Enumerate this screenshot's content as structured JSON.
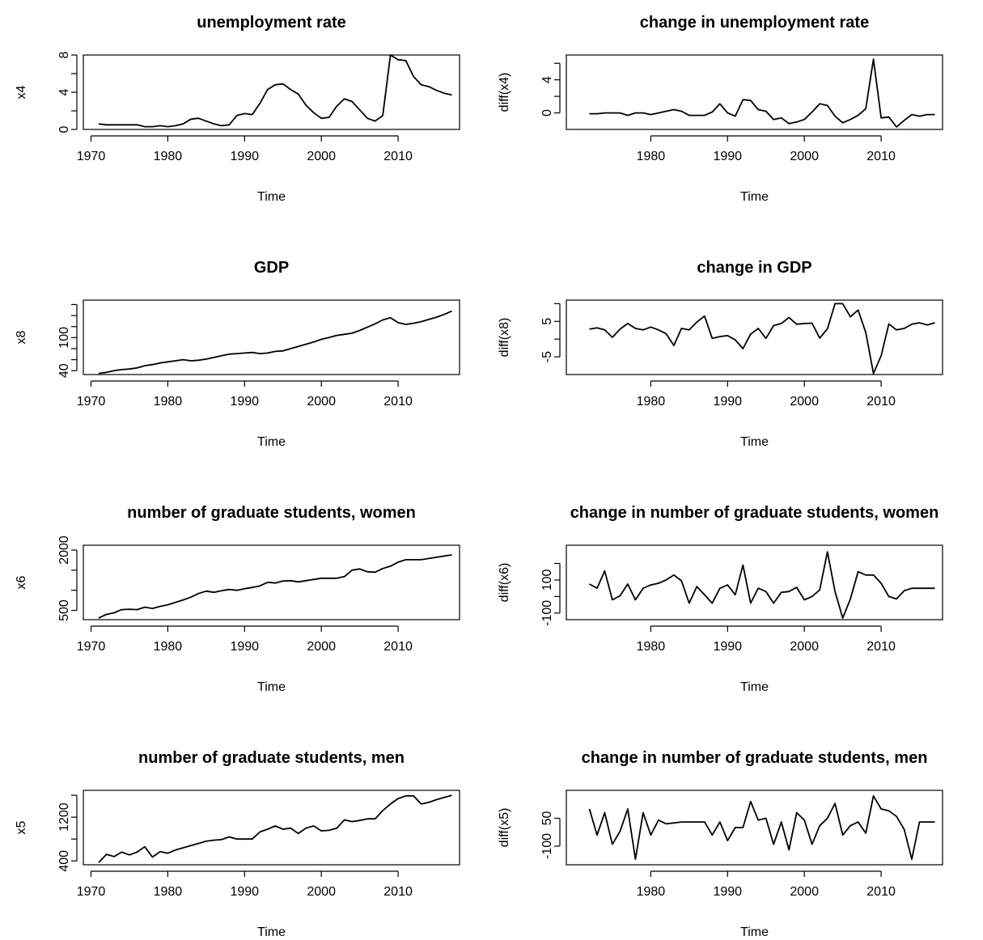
{
  "chart_data": [
    {
      "type": "line",
      "title": "unemployment rate",
      "xlabel": "Time",
      "ylabel": "x4",
      "x_start": 1971,
      "xlim": [
        1969,
        2018
      ],
      "ylim": [
        0,
        8
      ],
      "xticks": [
        1970,
        1980,
        1990,
        2000,
        2010
      ],
      "yticks": [
        0,
        2,
        4,
        6,
        8
      ],
      "ytick_labels": [
        "0",
        "",
        "4",
        "",
        "8"
      ],
      "values": [
        0.6,
        0.5,
        0.5,
        0.5,
        0.5,
        0.5,
        0.3,
        0.3,
        0.4,
        0.3,
        0.4,
        0.6,
        1.1,
        1.2,
        0.9,
        0.6,
        0.4,
        0.5,
        1.5,
        1.7,
        1.6,
        2.8,
        4.3,
        4.8,
        4.9,
        4.3,
        3.8,
        2.6,
        1.8,
        1.2,
        1.3,
        2.5,
        3.3,
        3.0,
        2.1,
        1.2,
        0.9,
        1.5,
        8.0,
        7.5,
        7.4,
        5.7,
        4.8,
        4.6,
        4.2,
        3.9,
        3.7
      ]
    },
    {
      "type": "line",
      "title": "change in unemployment rate",
      "xlabel": "Time",
      "ylabel": "diff(x4)",
      "x_start": 1972,
      "xlim": [
        1969,
        2018
      ],
      "ylim": [
        -2,
        7
      ],
      "xticks": [
        1980,
        1990,
        2000,
        2010
      ],
      "yticks": [
        0,
        2,
        4,
        6
      ],
      "ytick_labels": [
        "0",
        "",
        "4",
        ""
      ],
      "values": [
        -0.1,
        -0.1,
        0.0,
        0.0,
        0.0,
        -0.3,
        0.0,
        0.0,
        -0.2,
        0.0,
        0.2,
        0.4,
        0.2,
        -0.3,
        -0.3,
        -0.3,
        0.1,
        1.1,
        0.0,
        -0.4,
        1.6,
        1.5,
        0.4,
        0.2,
        -0.8,
        -0.6,
        -1.3,
        -1.1,
        -0.8,
        0.1,
        1.1,
        0.9,
        -0.4,
        -1.2,
        -0.8,
        -0.3,
        0.5,
        6.5,
        -0.6,
        -0.5,
        -1.7,
        -0.9,
        -0.2,
        -0.4,
        -0.2,
        -0.2
      ]
    },
    {
      "type": "line",
      "title": "GDP",
      "xlabel": "Time",
      "ylabel": "x8",
      "x_start": 1971,
      "xlim": [
        1969,
        2018
      ],
      "ylim": [
        33,
        168
      ],
      "xticks": [
        1970,
        1980,
        1990,
        2000,
        2010
      ],
      "yticks": [
        40,
        60,
        80,
        100,
        120,
        140,
        160
      ],
      "ytick_labels": [
        "40",
        "",
        "",
        "100",
        "",
        "",
        ""
      ],
      "values": [
        35,
        37,
        40,
        42,
        43,
        45,
        49,
        51,
        54,
        56,
        58,
        60,
        58,
        59,
        61,
        64,
        67,
        70,
        71,
        72,
        73,
        71,
        72,
        75,
        76,
        80,
        84,
        88,
        92,
        97,
        100,
        104,
        106,
        108,
        113,
        119,
        125,
        132,
        136,
        127,
        124,
        126,
        129,
        133,
        137,
        142,
        148
      ]
    },
    {
      "type": "line",
      "title": "change in GDP",
      "xlabel": "Time",
      "ylabel": "diff(x8)",
      "x_start": 1972,
      "xlim": [
        1969,
        2018
      ],
      "ylim": [
        -10,
        11
      ],
      "xticks": [
        1980,
        1990,
        2000,
        2010
      ],
      "yticks": [
        -5,
        0,
        5,
        10
      ],
      "ytick_labels": [
        "-5",
        "",
        "5",
        ""
      ],
      "values": [
        2.8,
        3.2,
        2.6,
        0.5,
        2.8,
        4.4,
        3.0,
        2.6,
        3.4,
        2.6,
        1.5,
        -1.8,
        3.0,
        2.6,
        4.8,
        6.5,
        0.2,
        0.7,
        1.0,
        -0.2,
        -2.7,
        1.4,
        3.0,
        0.2,
        3.8,
        4.4,
        6.1,
        4.2,
        4.4,
        4.5,
        0.3,
        2.9,
        10.0,
        10.0,
        6.3,
        8.2,
        1.9,
        -9.7,
        -4.7,
        4.3,
        2.6,
        3.0,
        4.2,
        4.6,
        4.0,
        4.6
      ]
    },
    {
      "type": "line",
      "title": "number of graduate students, women",
      "xlabel": "Time",
      "ylabel": "x6",
      "x_start": 1971,
      "xlim": [
        1969,
        2018
      ],
      "ylim": [
        270,
        2120
      ],
      "xticks": [
        1970,
        1980,
        1990,
        2000,
        2010
      ],
      "yticks": [
        500,
        1000,
        1500,
        2000
      ],
      "ytick_labels": [
        "500",
        "",
        "",
        "2000"
      ],
      "values": [
        310,
        400,
        440,
        520,
        530,
        520,
        580,
        550,
        600,
        640,
        700,
        760,
        830,
        920,
        980,
        950,
        990,
        1020,
        1000,
        1040,
        1070,
        1110,
        1200,
        1180,
        1230,
        1240,
        1210,
        1240,
        1270,
        1300,
        1300,
        1300,
        1340,
        1500,
        1530,
        1460,
        1450,
        1540,
        1600,
        1700,
        1760,
        1760,
        1760,
        1790,
        1820,
        1850,
        1880
      ]
    },
    {
      "type": "line",
      "title": "change in number of graduate students, women",
      "xlabel": "Time",
      "ylabel": "diff(x6)",
      "x_start": 1972,
      "xlim": [
        1969,
        2018
      ],
      "ylim": [
        -140,
        310
      ],
      "xticks": [
        1980,
        1990,
        2000,
        2010
      ],
      "yticks": [
        -100,
        0,
        100,
        200
      ],
      "ytick_labels": [
        "-100",
        "",
        "100",
        ""
      ],
      "values": [
        75,
        50,
        155,
        -20,
        5,
        75,
        -20,
        50,
        70,
        80,
        100,
        130,
        95,
        -40,
        60,
        10,
        -40,
        50,
        70,
        10,
        190,
        -40,
        50,
        30,
        -40,
        25,
        30,
        55,
        -20,
        0,
        40,
        270,
        30,
        -130,
        -15,
        150,
        130,
        130,
        80,
        0,
        -15,
        35,
        50,
        50,
        50,
        50
      ]
    },
    {
      "type": "line",
      "title": "number of graduate students, men",
      "xlabel": "Time",
      "ylabel": "x5",
      "x_start": 1971,
      "xlim": [
        1969,
        2018
      ],
      "ylim": [
        330,
        1690
      ],
      "xticks": [
        1970,
        1980,
        1990,
        2000,
        2010
      ],
      "yticks": [
        400,
        800,
        1200,
        1600
      ],
      "ytick_labels": [
        "400",
        "",
        "1200",
        ""
      ],
      "values": [
        370,
        520,
        480,
        560,
        510,
        560,
        660,
        470,
        570,
        540,
        600,
        640,
        680,
        720,
        760,
        780,
        790,
        840,
        800,
        800,
        800,
        930,
        980,
        1040,
        980,
        1000,
        900,
        1000,
        1040,
        950,
        960,
        1000,
        1150,
        1120,
        1140,
        1170,
        1170,
        1320,
        1440,
        1540,
        1590,
        1590,
        1440,
        1470,
        1520,
        1560,
        1600
      ]
    },
    {
      "type": "line",
      "title": "change in number of graduate students, men",
      "xlabel": "Time",
      "ylabel": "diff(x5)",
      "x_start": 1972,
      "xlim": [
        1969,
        2018
      ],
      "ylim": [
        -200,
        200
      ],
      "xticks": [
        1980,
        1990,
        2000,
        2010
      ],
      "yticks": [
        -100,
        50
      ],
      "ytick_labels": [
        "-100",
        "50"
      ],
      "values": [
        100,
        -40,
        80,
        -90,
        -20,
        100,
        -170,
        80,
        -40,
        40,
        20,
        25,
        30,
        30,
        30,
        30,
        -40,
        30,
        -70,
        0,
        0,
        140,
        40,
        50,
        -90,
        30,
        -120,
        80,
        40,
        -90,
        10,
        50,
        130,
        -40,
        10,
        30,
        -30,
        170,
        100,
        90,
        60,
        -10,
        -170,
        30,
        30,
        30
      ]
    }
  ]
}
